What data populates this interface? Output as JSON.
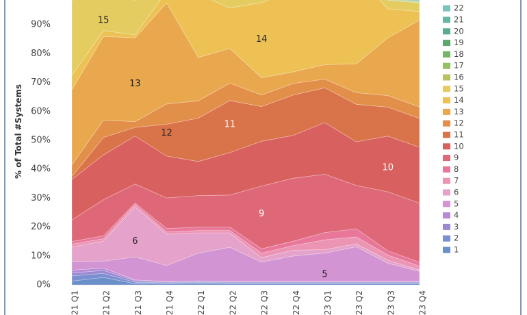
{
  "chart_data": {
    "type": "area",
    "stacked": true,
    "normalized": true,
    "title": "",
    "ylabel": "% of Total #Systems",
    "xlabel": "",
    "ylim": [
      0,
      100
    ],
    "y_ticks": [
      0,
      10,
      20,
      30,
      40,
      50,
      60,
      70,
      80,
      90
    ],
    "y_tick_labels": [
      "0%",
      "10%",
      "20%",
      "30%",
      "40%",
      "50%",
      "60%",
      "70%",
      "80%",
      "90%"
    ],
    "x_tick_labels": [
      "21 Q1",
      "21 Q2",
      "21 Q3",
      "21 Q4",
      "22 Q1",
      "22 Q2",
      "22 Q3",
      "22 Q4",
      "23 Q1",
      "23 Q2",
      "23 Q3",
      "23 Q4"
    ],
    "grid": "horizontal",
    "legend_position": "right",
    "series": [
      {
        "name": "1",
        "color": "#6b8fc9",
        "values": [
          1.3,
          2.6,
          0.4,
          0.4,
          0.4,
          0.4,
          0.4,
          0.4,
          0.4,
          0.4,
          0.4,
          0.4
        ]
      },
      {
        "name": "2",
        "color": "#7b8fd0",
        "values": [
          1.8,
          1.4,
          0.5,
          0.3,
          0.5,
          0.3,
          0.3,
          0.3,
          0.3,
          0.3,
          0.3,
          0.3
        ]
      },
      {
        "name": "3",
        "color": "#9a88d2",
        "values": [
          1,
          1,
          0.5,
          0.3,
          0.3,
          0.3,
          0.3,
          0.3,
          0.3,
          0.3,
          0.3,
          0.3
        ]
      },
      {
        "name": "4",
        "color": "#b68ad6",
        "values": [
          1,
          0.8,
          0.3,
          0.2,
          0.2,
          0.2,
          0.2,
          0.2,
          0.2,
          0.2,
          0.2,
          0.2
        ]
      },
      {
        "name": "5",
        "color": "#d294d2",
        "values": [
          3,
          2.4,
          8,
          5.5,
          9.6,
          11.8,
          6.7,
          8.8,
          9.8,
          12,
          6.3,
          3.5
        ]
      },
      {
        "name": "6",
        "color": "#e5a2ca",
        "values": [
          5,
          7,
          17.3,
          10.8,
          7,
          5,
          1.5,
          2,
          1.2,
          1,
          1,
          0.5
        ]
      },
      {
        "name": "7",
        "color": "#ec94b4",
        "values": [
          1,
          0.8,
          0.8,
          0.8,
          0.8,
          0.8,
          1.6,
          1.6,
          3.4,
          2.4,
          1.8,
          1.3
        ]
      },
      {
        "name": "8",
        "color": "#e8779a",
        "values": [
          0.9,
          1,
          0.5,
          1.2,
          1.2,
          1.2,
          1.5,
          1.5,
          2.5,
          2.8,
          1.5,
          1.3
        ]
      },
      {
        "name": "9",
        "color": "#de6877",
        "values": [
          7.5,
          12.5,
          6.6,
          10.6,
          10.9,
          11.1,
          21.7,
          21.8,
          20.2,
          15,
          20.4,
          20.5
        ]
      },
      {
        "name": "10",
        "color": "#d8605f",
        "values": [
          14,
          15.5,
          16.6,
          14.5,
          11.8,
          14.7,
          15.5,
          14.8,
          17.9,
          15.1,
          19.3,
          19.3
        ]
      },
      {
        "name": "11",
        "color": "#d9734a",
        "values": [
          1,
          6,
          3,
          11,
          15,
          18,
          12,
          14,
          12,
          13,
          10,
          10
        ]
      },
      {
        "name": "12",
        "color": "#e28f4a",
        "values": [
          4,
          6,
          2,
          7,
          6,
          6,
          4,
          4,
          3,
          4,
          4,
          4
        ]
      },
      {
        "name": "13",
        "color": "#e9a84e",
        "values": [
          26,
          29,
          29,
          35,
          15,
          12,
          6,
          4,
          5,
          10,
          20,
          30
        ]
      },
      {
        "name": "14",
        "color": "#edc153",
        "values": [
          5,
          2,
          1,
          4,
          22,
          14,
          26,
          28,
          28,
          31,
          10,
          3
        ]
      },
      {
        "name": "15",
        "color": "#e4cc60",
        "values": [
          26,
          13,
          12,
          6,
          4,
          14,
          2,
          12,
          11,
          7,
          3,
          3
        ]
      },
      {
        "name": "16",
        "color": "#b9c262",
        "values": [
          0.2,
          0.2,
          0.2,
          0.2,
          0.2,
          0.2,
          0.2,
          0.2,
          0.2,
          0.2,
          0.2,
          0.2
        ]
      },
      {
        "name": "17",
        "color": "#95bf63",
        "values": [
          0.2,
          0.2,
          0.2,
          0.2,
          0.2,
          0.2,
          0.2,
          0.2,
          0.2,
          0.2,
          0.2,
          0.2
        ]
      },
      {
        "name": "18",
        "color": "#74b569",
        "values": [
          0.2,
          0.2,
          0.2,
          0.2,
          0.2,
          0.2,
          0.2,
          0.2,
          0.2,
          0.2,
          0.2,
          0.2
        ]
      },
      {
        "name": "19",
        "color": "#5ca76e",
        "values": [
          0.2,
          0.2,
          0.2,
          0.2,
          0.2,
          0.2,
          0.2,
          0.2,
          0.2,
          0.2,
          0.2,
          0.2
        ]
      },
      {
        "name": "20",
        "color": "#5aac8c",
        "values": [
          0.2,
          0.2,
          0.2,
          0.2,
          0.2,
          0.2,
          0.2,
          0.2,
          0.2,
          0.2,
          0.2,
          0.2
        ]
      },
      {
        "name": "21",
        "color": "#67b6a3",
        "values": [
          0.2,
          0.2,
          0.2,
          0.2,
          0.2,
          0.2,
          0.2,
          0.2,
          0.2,
          0.2,
          0.2,
          0.2
        ]
      },
      {
        "name": "22",
        "color": "#7dc3bd",
        "values": [
          0.2,
          0.2,
          0.2,
          0.2,
          0.2,
          0.2,
          0.2,
          0.2,
          0.2,
          0.2,
          0.2,
          0.2
        ]
      }
    ],
    "area_labels": [
      {
        "text": "15",
        "x": "21 Q2",
        "y": 91.5,
        "color": "#222222"
      },
      {
        "text": "13",
        "x": "21 Q3",
        "y": 69.5,
        "color": "#222222"
      },
      {
        "text": "12",
        "x": "21 Q4",
        "y": 52.5,
        "color": "#222222"
      },
      {
        "text": "14",
        "x": "22 Q3",
        "y": 85,
        "color": "#222222"
      },
      {
        "text": "11",
        "x": "22 Q2",
        "y": 55.5,
        "color": "#ffffff"
      },
      {
        "text": "9",
        "x": "22 Q3",
        "y": 24.5,
        "color": "#ffffff"
      },
      {
        "text": "10",
        "x": "23 Q3",
        "y": 40.5,
        "color": "#ffffff"
      },
      {
        "text": "6",
        "x": "21 Q3",
        "y": 15,
        "color": "#222222"
      },
      {
        "text": "5",
        "x": "23 Q1",
        "y": 3.5,
        "color": "#222222"
      }
    ]
  }
}
